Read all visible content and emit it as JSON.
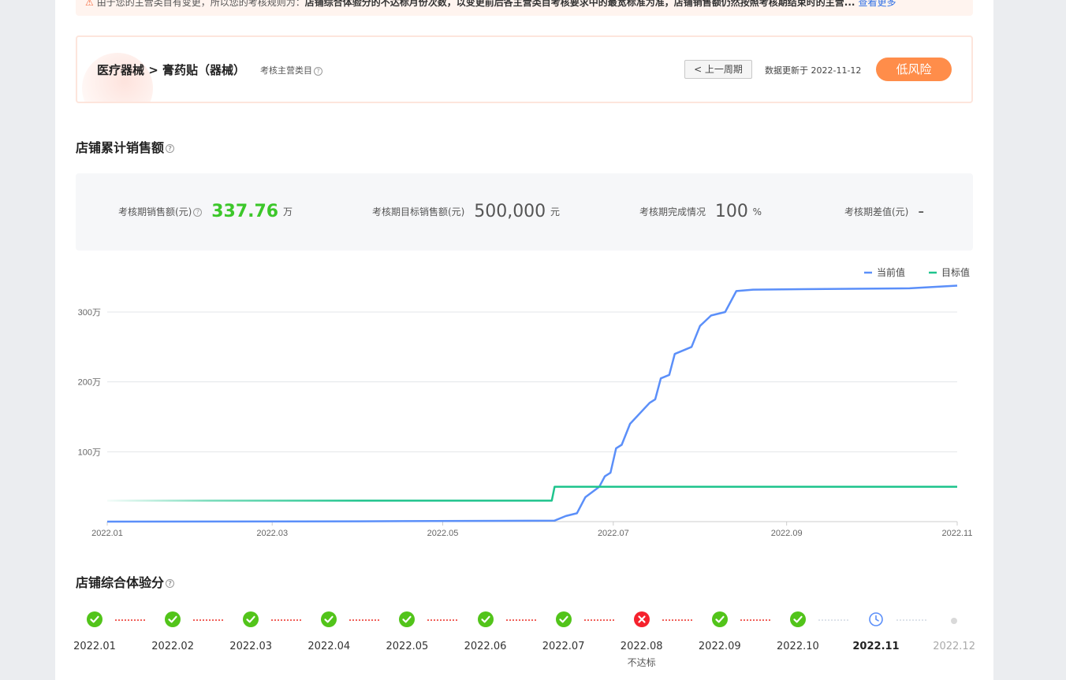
{
  "notice": {
    "prefix": "由于您的主营类目有变更，所以您的考核规则为：",
    "bold": "店铺综合体验分的不达标月份次数，以变更前后各主营类目考核要求中的最宽标准为准，店铺销售额仍然按照考核期结束时的主营...",
    "more": "查看更多"
  },
  "category": {
    "title": "医疗器械 > 膏药贴（器械）",
    "sub_label": "考核主营类目",
    "prev_button": "< 上一周期",
    "update_text": "数据更新于 2022-11-12",
    "risk_label": "低风险"
  },
  "sales": {
    "section_title": "店铺累计销售额",
    "stats": [
      {
        "label": "考核期销售额(元)",
        "value": "337.76",
        "unit": "万"
      },
      {
        "label": "考核期目标销售额(元)",
        "value": "500,000",
        "unit": "元"
      },
      {
        "label": "考核期完成情况",
        "value": "100",
        "unit": "%"
      },
      {
        "label": "考核期差值(元)",
        "value": "-",
        "unit": ""
      }
    ]
  },
  "chart_data": {
    "type": "line",
    "x_ticks": [
      "2022.01",
      "2022.03",
      "2022.05",
      "2022.07",
      "2022.09",
      "2022.11"
    ],
    "y_ticks": [
      "100万",
      "200万",
      "300万"
    ],
    "ylim": [
      0,
      3000000
    ],
    "grid": true,
    "legend_position": "top-right",
    "series": [
      {
        "name": "当前值",
        "color": "#5b8ff9",
        "points": [
          [
            "2022-01-01",
            0
          ],
          [
            "2022-04-01",
            5000
          ],
          [
            "2022-06-10",
            15000
          ],
          [
            "2022-06-14",
            80000
          ],
          [
            "2022-06-18",
            120000
          ],
          [
            "2022-06-21",
            350000
          ],
          [
            "2022-06-26",
            500000
          ],
          [
            "2022-06-28",
            650000
          ],
          [
            "2022-06-30",
            700000
          ],
          [
            "2022-07-02",
            1050000
          ],
          [
            "2022-07-04",
            1100000
          ],
          [
            "2022-07-07",
            1400000
          ],
          [
            "2022-07-14",
            1700000
          ],
          [
            "2022-07-16",
            1750000
          ],
          [
            "2022-07-18",
            2050000
          ],
          [
            "2022-07-21",
            2100000
          ],
          [
            "2022-07-23",
            2400000
          ],
          [
            "2022-07-29",
            2500000
          ],
          [
            "2022-08-01",
            2800000
          ],
          [
            "2022-08-05",
            2950000
          ],
          [
            "2022-08-10",
            3000000
          ],
          [
            "2022-08-14",
            3300000
          ],
          [
            "2022-08-20",
            3320000
          ],
          [
            "2022-09-15",
            3330000
          ],
          [
            "2022-10-15",
            3340000
          ],
          [
            "2022-11-01",
            3377600
          ]
        ]
      },
      {
        "name": "目标值",
        "color": "#1fc48d",
        "points": [
          [
            "2022-01-01",
            300000
          ],
          [
            "2022-06-09",
            300000
          ],
          [
            "2022-06-10",
            500000
          ],
          [
            "2022-11-01",
            500000
          ]
        ]
      }
    ]
  },
  "experience": {
    "section_title": "店铺综合体验分",
    "months": [
      {
        "label": "2022.01",
        "status": "pass"
      },
      {
        "label": "2022.02",
        "status": "pass"
      },
      {
        "label": "2022.03",
        "status": "pass"
      },
      {
        "label": "2022.04",
        "status": "pass"
      },
      {
        "label": "2022.05",
        "status": "pass"
      },
      {
        "label": "2022.06",
        "status": "pass"
      },
      {
        "label": "2022.07",
        "status": "pass"
      },
      {
        "label": "2022.08",
        "status": "fail",
        "sub": "不达标"
      },
      {
        "label": "2022.09",
        "status": "pass"
      },
      {
        "label": "2022.10",
        "status": "pass"
      },
      {
        "label": "2022.11",
        "status": "current"
      },
      {
        "label": "2022.12",
        "status": "future"
      }
    ],
    "colors": {
      "pass": "#52c41a",
      "fail": "#f5222d",
      "current": "#5b8ff9",
      "future": "#d9d9d9",
      "connector_red": "#f0615a",
      "connector_grey": "#dde2ea"
    }
  }
}
